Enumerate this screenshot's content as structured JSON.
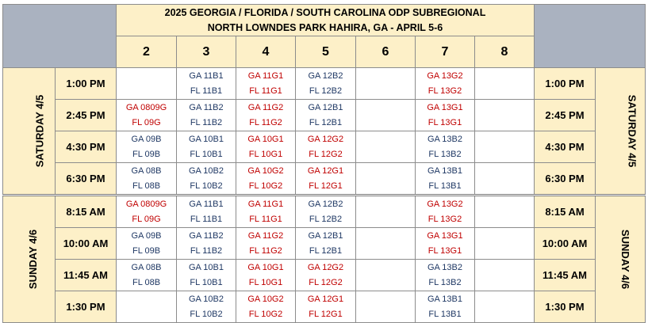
{
  "title": {
    "line1": "2025 GEORGIA / FLORIDA / SOUTH CAROLINA ODP SUBREGIONAL",
    "line2": "NORTH LOWNDES PARK HAHIRA, GA - APRIL 5-6"
  },
  "fields": [
    "2",
    "3",
    "4",
    "5",
    "6",
    "7",
    "8"
  ],
  "colors": {
    "boys": "#1f3864",
    "girls": "#c00000",
    "header_bg": "#fdf0c8",
    "corner_bg": "#aab2c0"
  },
  "days": [
    {
      "label": "SATURDAY  4/5",
      "slots": [
        {
          "time": "1:00 PM",
          "games": [
            null,
            [
              "GA 11B1",
              "FL 11B1"
            ],
            [
              "GA 11G1",
              "FL 11G1"
            ],
            [
              "GA 12B2",
              "FL 12B2"
            ],
            null,
            [
              "GA 13G2",
              "FL 13G2"
            ],
            null
          ]
        },
        {
          "time": "2:45 PM",
          "games": [
            [
              "GA 0809G",
              "FL 09G"
            ],
            [
              "GA 11B2",
              "FL 11B2"
            ],
            [
              "GA 11G2",
              "FL 11G2"
            ],
            [
              "GA 12B1",
              "FL 12B1"
            ],
            null,
            [
              "GA 13G1",
              "FL 13G1"
            ],
            null
          ]
        },
        {
          "time": "4:30 PM",
          "games": [
            [
              "GA 09B",
              "FL 09B"
            ],
            [
              "GA 10B1",
              "FL 10B1"
            ],
            [
              "GA 10G1",
              "FL 10G1"
            ],
            [
              "GA 12G2",
              "FL 12G2"
            ],
            null,
            [
              "GA 13B2",
              "FL 13B2"
            ],
            null
          ]
        },
        {
          "time": "6:30 PM",
          "games": [
            [
              "GA 08B",
              "FL 08B"
            ],
            [
              "GA 10B2",
              "FL 10B2"
            ],
            [
              "GA 10G2",
              "FL 10G2"
            ],
            [
              "GA 12G1",
              "FL 12G1"
            ],
            null,
            [
              "GA 13B1",
              "FL 13B1"
            ],
            null
          ]
        }
      ]
    },
    {
      "label": "SUNDAY  4/6",
      "slots": [
        {
          "time": "8:15 AM",
          "games": [
            [
              "GA 0809G",
              "FL 09G"
            ],
            [
              "GA 11B1",
              "FL 11B1"
            ],
            [
              "GA 11G1",
              "FL 11G1"
            ],
            [
              "GA 12B2",
              "FL 12B2"
            ],
            null,
            [
              "GA 13G2",
              "FL 13G2"
            ],
            null
          ]
        },
        {
          "time": "10:00 AM",
          "games": [
            [
              "GA 09B",
              "FL 09B"
            ],
            [
              "GA 11B2",
              "FL 11B2"
            ],
            [
              "GA 11G2",
              "FL 11G2"
            ],
            [
              "GA 12B1",
              "FL 12B1"
            ],
            null,
            [
              "GA 13G1",
              "FL 13G1"
            ],
            null
          ]
        },
        {
          "time": "11:45 AM",
          "games": [
            [
              "GA 08B",
              "FL 08B"
            ],
            [
              "GA 10B1",
              "FL 10B1"
            ],
            [
              "GA 10G1",
              "FL 10G1"
            ],
            [
              "GA 12G2",
              "FL 12G2"
            ],
            null,
            [
              "GA 13B2",
              "FL 13B2"
            ],
            null
          ]
        },
        {
          "time": "1:30 PM",
          "games": [
            null,
            [
              "GA 10B2",
              "FL 10B2"
            ],
            [
              "GA 10G2",
              "FL 10G2"
            ],
            [
              "GA 12G1",
              "FL 12G1"
            ],
            null,
            [
              "GA 13B1",
              "FL 13B1"
            ],
            null
          ]
        }
      ]
    }
  ]
}
